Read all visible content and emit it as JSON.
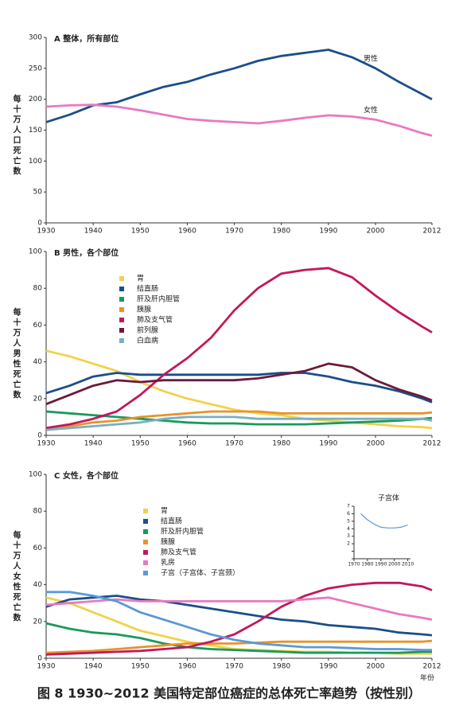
{
  "chart_data": [
    {
      "type": "line",
      "title": "A 整体，所有部位",
      "ylabel": "每十万人口死亡数",
      "x": [
        1930,
        1935,
        1940,
        1945,
        1950,
        1955,
        1960,
        1965,
        1970,
        1975,
        1980,
        1985,
        1990,
        1995,
        2000,
        2005,
        2010,
        2012
      ],
      "xlim": [
        1930,
        2012
      ],
      "xticks": [
        1930,
        1940,
        1950,
        1960,
        1970,
        1980,
        1990,
        2000,
        2012
      ],
      "ylim": [
        0,
        300
      ],
      "yticks": [
        0,
        50,
        100,
        150,
        200,
        250,
        300
      ],
      "legend": "direct",
      "series": [
        {
          "name": "男性",
          "color": "#1a4f8a",
          "values": [
            163,
            175,
            190,
            195,
            208,
            220,
            228,
            240,
            250,
            262,
            270,
            275,
            280,
            268,
            250,
            228,
            208,
            200
          ]
        },
        {
          "name": "女性",
          "color": "#e87ac0",
          "values": [
            188,
            190,
            191,
            188,
            182,
            175,
            168,
            165,
            163,
            161,
            165,
            170,
            174,
            172,
            167,
            157,
            145,
            141
          ]
        }
      ]
    },
    {
      "type": "line",
      "title": "B 男性，各个部位",
      "ylabel": "每十万人男性死亡数",
      "x": [
        1930,
        1935,
        1940,
        1945,
        1950,
        1955,
        1960,
        1965,
        1970,
        1975,
        1980,
        1985,
        1990,
        1995,
        2000,
        2005,
        2010,
        2012
      ],
      "xlim": [
        1930,
        2012
      ],
      "xticks": [
        1930,
        1940,
        1950,
        1960,
        1970,
        1980,
        1990,
        2000,
        2012
      ],
      "ylim": [
        0,
        100
      ],
      "yticks": [
        0,
        20,
        40,
        60,
        80,
        100
      ],
      "legend": "upper left",
      "series": [
        {
          "name": "胃",
          "color": "#f2d14a",
          "values": [
            46,
            43,
            39,
            35,
            29,
            24,
            20,
            17,
            14,
            12,
            11,
            9,
            8,
            7,
            6,
            5,
            4.5,
            4
          ]
        },
        {
          "name": "结直肠",
          "color": "#1a4f8a",
          "values": [
            23,
            27,
            32,
            34,
            33,
            33,
            33,
            33,
            33,
            33,
            34,
            34,
            32,
            29,
            27,
            24,
            20,
            18
          ]
        },
        {
          "name": "肝及肝内胆管",
          "color": "#1a9a5a",
          "values": [
            13,
            12,
            11,
            10,
            9,
            8,
            7,
            6.5,
            6.5,
            6,
            6,
            6,
            6.5,
            7,
            7.5,
            8,
            9,
            9.5
          ]
        },
        {
          "name": "胰腺",
          "color": "#e8932a",
          "values": [
            4,
            5,
            7,
            8,
            10,
            11,
            12,
            13,
            13,
            13,
            12,
            12,
            12,
            12,
            12,
            12,
            12,
            12.5
          ]
        },
        {
          "name": "肺及支气管",
          "color": "#c2185b",
          "values": [
            4,
            6,
            9,
            13,
            22,
            33,
            42,
            53,
            68,
            80,
            88,
            90,
            91,
            86,
            76,
            67,
            59,
            56
          ]
        },
        {
          "name": "前列腺",
          "color": "#6b1b3a",
          "values": [
            17,
            22,
            27,
            30,
            29,
            30,
            30,
            30,
            30,
            31,
            33,
            35,
            39,
            37,
            30,
            25,
            21,
            19
          ]
        },
        {
          "name": "白血病",
          "color": "#7ab0c0",
          "values": [
            3,
            4,
            5,
            6,
            7,
            9,
            10,
            10,
            10,
            9,
            9,
            9,
            9,
            9,
            9,
            9,
            9,
            8
          ]
        }
      ]
    },
    {
      "type": "line",
      "title": "C 女性，各个部位",
      "ylabel": "每十万人女性死亡数",
      "xlabel": "年份",
      "x": [
        1930,
        1935,
        1940,
        1945,
        1950,
        1955,
        1960,
        1965,
        1970,
        1975,
        1980,
        1985,
        1990,
        1995,
        2000,
        2005,
        2010,
        2012
      ],
      "xlim": [
        1930,
        2012
      ],
      "xticks": [
        1930,
        1940,
        1950,
        1960,
        1970,
        1980,
        1990,
        2000,
        2012
      ],
      "ylim": [
        0,
        100
      ],
      "yticks": [
        0,
        20,
        40,
        60,
        80,
        100
      ],
      "legend": "upper left",
      "series": [
        {
          "name": "胃",
          "color": "#f2d14a",
          "values": [
            33,
            30,
            25,
            20,
            15,
            12,
            9,
            7,
            5,
            4.5,
            4,
            3.5,
            3.5,
            3,
            3,
            2.5,
            2.5,
            2.5
          ]
        },
        {
          "name": "结直肠",
          "color": "#1a4f8a",
          "values": [
            28,
            32,
            33,
            34,
            32,
            31,
            29,
            27,
            25,
            23,
            21,
            20,
            18,
            17,
            16,
            14,
            13,
            12.5
          ]
        },
        {
          "name": "肝及肝内胆管",
          "color": "#1a9a5a",
          "values": [
            19,
            16,
            14,
            13,
            11,
            8,
            6,
            5,
            4.5,
            4,
            3.5,
            3,
            3,
            3,
            3,
            3,
            3.5,
            3.5
          ]
        },
        {
          "name": "胰腺",
          "color": "#e8932a",
          "values": [
            3,
            3.5,
            4,
            5,
            6,
            7,
            8,
            8,
            8,
            8.5,
            9,
            9,
            9,
            9,
            9,
            9,
            9,
            9.5
          ]
        },
        {
          "name": "肺及支气管",
          "color": "#c2185b",
          "values": [
            2,
            2.5,
            3,
            3.5,
            4,
            5,
            6,
            9,
            13,
            20,
            28,
            34,
            38,
            40,
            41,
            41,
            39,
            37
          ]
        },
        {
          "name": "乳房",
          "color": "#e87ac0",
          "values": [
            29,
            30,
            31,
            32,
            31,
            31,
            31,
            31,
            31,
            31,
            31,
            32,
            33,
            30,
            27,
            24,
            22,
            21
          ]
        },
        {
          "name": "子宫（子宫体、子宫颈）",
          "color": "#5a9ad6",
          "values": [
            36,
            36,
            34,
            31,
            25,
            21,
            17,
            13,
            10,
            8,
            7,
            6,
            6,
            5.5,
            5,
            5,
            4.5,
            4.5
          ]
        }
      ]
    },
    {
      "type": "line",
      "title": "子宫体",
      "x": [
        1975,
        1980,
        1985,
        1990,
        1995,
        2000,
        2005,
        2010
      ],
      "xlim": [
        1970,
        2012
      ],
      "xticks": [
        1970,
        1980,
        1990,
        2000,
        2010
      ],
      "ylim": [
        0,
        7
      ],
      "yticks": [
        0,
        1,
        2,
        3,
        4,
        5,
        6,
        7
      ],
      "series": [
        {
          "color": "#5a9ad6",
          "values": [
            6,
            5.2,
            4.6,
            4.2,
            4.1,
            4.1,
            4.2,
            4.5
          ]
        }
      ]
    }
  ],
  "caption": "图 8 1930~2012 美国特定部位癌症的总体死亡率趋势（按性别）"
}
